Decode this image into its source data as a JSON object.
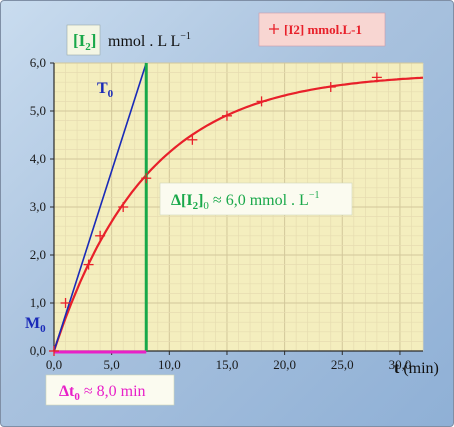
{
  "chart_data": {
    "type": "scatter",
    "title": "",
    "xlabel": {
      "symbol": "t",
      "unit": "(min)"
    },
    "ylabel": {
      "symbol_base": "I",
      "symbol_sub": "2",
      "unit_text": "mmol . L",
      "unit_exp": "−1"
    },
    "xlim": [
      0,
      32
    ],
    "ylim": [
      0,
      6
    ],
    "x_ticks": [
      0,
      5,
      10,
      15,
      20,
      25,
      30
    ],
    "x_tick_labels": [
      "0,0",
      "5,0",
      "10,0",
      "15,0",
      "20,0",
      "25,0",
      "30,0"
    ],
    "y_ticks": [
      0,
      1,
      2,
      3,
      4,
      5,
      6
    ],
    "y_tick_labels": [
      "0,0",
      "1,0",
      "2,0",
      "3,0",
      "4,0",
      "5,0",
      "6,0"
    ],
    "grid": true,
    "legend": {
      "position": "top-right",
      "marker": "+",
      "label": "[I2] mmol.L-1"
    },
    "series": [
      {
        "name": "[I2] mmol.L-1",
        "marker": "+",
        "color": "#e8202a",
        "x": [
          0,
          1,
          3,
          4,
          6,
          8,
          12,
          15,
          18,
          24,
          28
        ],
        "y": [
          0,
          1.0,
          1.8,
          2.4,
          3.0,
          3.6,
          4.4,
          4.9,
          5.2,
          5.5,
          5.7
        ]
      }
    ],
    "fit_curve": {
      "color": "#e8202a",
      "model": "y = 5.8 * (1 - exp(-t/8))"
    },
    "tangent": {
      "color": "#1a2ab8",
      "from": [
        0,
        0
      ],
      "to": [
        8,
        6
      ],
      "label": {
        "base": "T",
        "sub": "0"
      }
    },
    "vertical_marker": {
      "x": 8,
      "color": "#19a84a"
    },
    "horizontal_marker": {
      "x_range": [
        0,
        8
      ],
      "color": "#e820c8"
    },
    "origin_label": {
      "base": "M",
      "sub": "0"
    },
    "annotations": {
      "delta_i": {
        "prefix": "Δ[I",
        "sub1": "2",
        "mid": "]",
        "sub2": "0",
        "rest": " ≈ 6,0 mmol . L",
        "exp": "−1"
      },
      "delta_t": {
        "prefix": "Δt",
        "sub": "0",
        "rest": " ≈ 8,0 min"
      }
    }
  },
  "colors": {
    "plot_bg": "#f4eebe",
    "grid_major": "#d2c79a",
    "grid_minor": "#e6dcb0",
    "axis_label_text": "#1a1a1a",
    "y_label_box_text": "#19a84a",
    "delta_i_text": "#19a84a",
    "delta_t_text": "#e820c8",
    "legend_box_bg": "#f8d6d2",
    "origin_label": "#1a2ab8"
  }
}
